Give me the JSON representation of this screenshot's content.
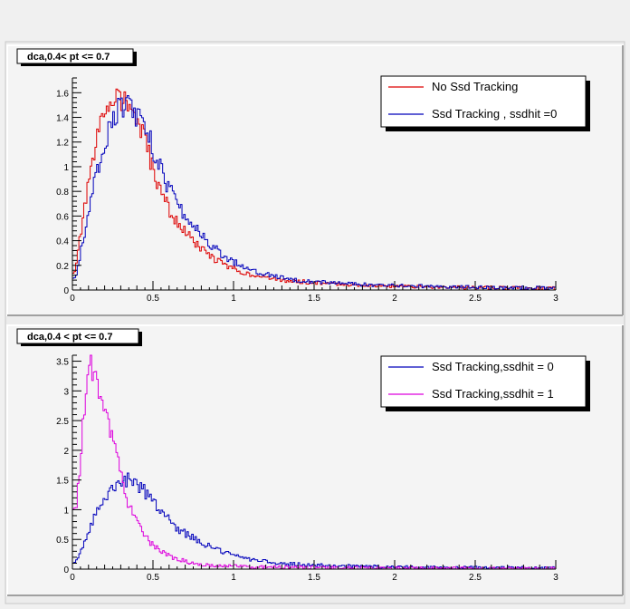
{
  "chart_data": [
    {
      "type": "line",
      "title": "dca,0.4< pt <= 0.7",
      "xlim": [
        0,
        3
      ],
      "ylim": [
        0,
        1.72
      ],
      "x_ticks": [
        "0",
        "0.5",
        "1",
        "1.5",
        "2",
        "2.5",
        "3"
      ],
      "y_ticks": [
        "0",
        "0.2",
        "0.4",
        "0.6",
        "0.8",
        "1",
        "1.2",
        "1.4",
        "1.6"
      ],
      "legend_position": "top-right",
      "series": [
        {
          "name": "No Ssd Tracking",
          "color": "#dd0000",
          "x": [
            0.02,
            0.05,
            0.1,
            0.15,
            0.2,
            0.25,
            0.3,
            0.35,
            0.4,
            0.45,
            0.5,
            0.55,
            0.6,
            0.65,
            0.7,
            0.75,
            0.8,
            0.85,
            0.9,
            0.95,
            1.0,
            1.1,
            1.2,
            1.3,
            1.4,
            1.5,
            1.6,
            1.7,
            1.8,
            1.9,
            2.0,
            2.2,
            2.4,
            2.6,
            2.8,
            3.0
          ],
          "y": [
            0.15,
            0.45,
            0.85,
            1.2,
            1.45,
            1.6,
            1.55,
            1.5,
            1.38,
            1.2,
            0.98,
            0.8,
            0.65,
            0.55,
            0.47,
            0.4,
            0.33,
            0.28,
            0.24,
            0.2,
            0.17,
            0.13,
            0.1,
            0.08,
            0.07,
            0.06,
            0.05,
            0.045,
            0.04,
            0.035,
            0.03,
            0.025,
            0.02,
            0.02,
            0.015,
            0.015
          ]
        },
        {
          "name": "Ssd Tracking , ssdhit =0",
          "color": "#0000bb",
          "x": [
            0.02,
            0.05,
            0.1,
            0.15,
            0.2,
            0.25,
            0.3,
            0.35,
            0.4,
            0.45,
            0.5,
            0.55,
            0.6,
            0.65,
            0.7,
            0.75,
            0.8,
            0.85,
            0.9,
            0.95,
            1.0,
            1.1,
            1.2,
            1.3,
            1.4,
            1.5,
            1.6,
            1.7,
            1.8,
            1.9,
            2.0,
            2.2,
            2.4,
            2.6,
            2.8,
            3.0
          ],
          "y": [
            0.1,
            0.3,
            0.6,
            0.95,
            1.2,
            1.4,
            1.48,
            1.5,
            1.42,
            1.3,
            1.15,
            0.98,
            0.82,
            0.7,
            0.6,
            0.52,
            0.45,
            0.38,
            0.32,
            0.27,
            0.23,
            0.17,
            0.13,
            0.1,
            0.08,
            0.07,
            0.06,
            0.05,
            0.045,
            0.04,
            0.035,
            0.03,
            0.025,
            0.02,
            0.02,
            0.015
          ]
        }
      ]
    },
    {
      "type": "line",
      "title": "dca,0.4 < pt <= 0.7",
      "xlim": [
        0,
        3
      ],
      "ylim": [
        0,
        3.6
      ],
      "x_ticks": [
        "0",
        "0.5",
        "1",
        "1.5",
        "2",
        "2.5",
        "3"
      ],
      "y_ticks": [
        "0",
        "0.5",
        "1",
        "1.5",
        "2",
        "2.5",
        "3",
        "3.5"
      ],
      "legend_position": "top-right",
      "series": [
        {
          "name": "Ssd Tracking,ssdhit = 0",
          "color": "#0000bb",
          "x": [
            0.02,
            0.05,
            0.1,
            0.15,
            0.2,
            0.25,
            0.3,
            0.35,
            0.4,
            0.45,
            0.5,
            0.55,
            0.6,
            0.65,
            0.7,
            0.75,
            0.8,
            0.85,
            0.9,
            0.95,
            1.0,
            1.1,
            1.2,
            1.3,
            1.4,
            1.5,
            1.6,
            1.7,
            1.8,
            1.9,
            2.0,
            2.2,
            2.4,
            2.6,
            2.8,
            3.0
          ],
          "y": [
            0.1,
            0.3,
            0.6,
            0.95,
            1.2,
            1.4,
            1.48,
            1.5,
            1.42,
            1.3,
            1.15,
            0.98,
            0.82,
            0.7,
            0.6,
            0.52,
            0.45,
            0.38,
            0.32,
            0.27,
            0.23,
            0.17,
            0.13,
            0.1,
            0.08,
            0.07,
            0.06,
            0.05,
            0.045,
            0.04,
            0.035,
            0.03,
            0.025,
            0.02,
            0.02,
            0.015
          ]
        },
        {
          "name": "Ssd Tracking,ssdhit = 1",
          "color": "#dd00dd",
          "x": [
            0.02,
            0.04,
            0.06,
            0.08,
            0.1,
            0.12,
            0.14,
            0.16,
            0.18,
            0.2,
            0.22,
            0.24,
            0.26,
            0.28,
            0.3,
            0.32,
            0.35,
            0.4,
            0.45,
            0.5,
            0.55,
            0.6,
            0.65,
            0.7,
            0.75,
            0.8,
            0.9,
            1.0,
            1.1,
            1.2,
            1.3,
            1.5,
            1.7,
            2.0,
            2.5,
            3.0
          ],
          "y": [
            1.0,
            1.5,
            2.2,
            2.9,
            3.3,
            3.45,
            3.2,
            3.0,
            2.8,
            2.6,
            2.5,
            2.3,
            2.1,
            1.85,
            1.6,
            1.35,
            1.1,
            0.8,
            0.55,
            0.4,
            0.3,
            0.22,
            0.17,
            0.13,
            0.1,
            0.08,
            0.06,
            0.05,
            0.04,
            0.035,
            0.03,
            0.025,
            0.02,
            0.015,
            0.01,
            0.01
          ]
        }
      ]
    }
  ]
}
